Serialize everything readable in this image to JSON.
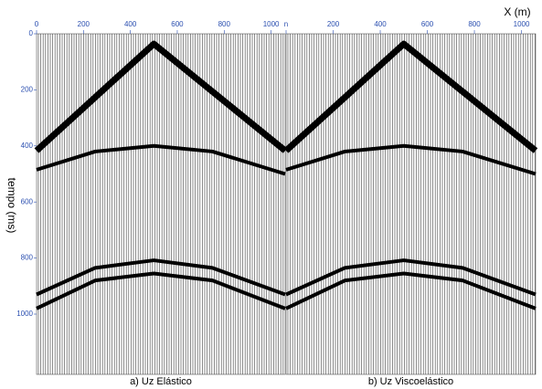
{
  "chart_data": [
    {
      "type": "gather",
      "title": "a) Uz Elástico",
      "xlabel": "X (m)",
      "ylabel": "tempo (ms)",
      "xlim": [
        0,
        1060
      ],
      "xticks": [
        0,
        200,
        400,
        600,
        800,
        1000
      ],
      "ylim": [
        0,
        1215
      ],
      "yticks": [
        0,
        200,
        400,
        600,
        800,
        1000
      ],
      "series": [
        {
          "color": "#000000",
          "x": [
            0,
            500,
            1060
          ],
          "values": [
            417,
            36,
            417
          ]
        },
        {
          "color": "#000000",
          "x": [
            0,
            250,
            500,
            750,
            1060
          ],
          "values": [
            485,
            420,
            400,
            420,
            500
          ]
        },
        {
          "color": "#000000",
          "x": [
            0,
            250,
            500,
            750,
            1060
          ],
          "values": [
            930,
            835,
            808,
            835,
            930
          ]
        },
        {
          "color": "#000000",
          "x": [
            0,
            250,
            500,
            750,
            1060
          ],
          "values": [
            980,
            880,
            855,
            880,
            980
          ]
        }
      ]
    },
    {
      "type": "gather",
      "title": "b) Uz Viscoelástico",
      "xlim": [
        0,
        1060
      ],
      "xticks": [
        {
          "value": 0,
          "label": "n"
        },
        200,
        400,
        600,
        800,
        1000
      ],
      "ylim": [
        0,
        1215
      ],
      "series": [
        {
          "color": "#000000",
          "x": [
            0,
            500,
            1060
          ],
          "values": [
            417,
            36,
            417
          ]
        },
        {
          "color": "#000000",
          "x": [
            0,
            250,
            500,
            750,
            1060
          ],
          "values": [
            485,
            420,
            400,
            420,
            500
          ]
        },
        {
          "color": "#000000",
          "x": [
            0,
            250,
            500,
            750,
            1060
          ],
          "values": [
            930,
            835,
            808,
            835,
            930
          ]
        },
        {
          "color": "#000000",
          "x": [
            0,
            250,
            500,
            750,
            1060
          ],
          "values": [
            980,
            880,
            855,
            880,
            980
          ]
        }
      ]
    }
  ]
}
